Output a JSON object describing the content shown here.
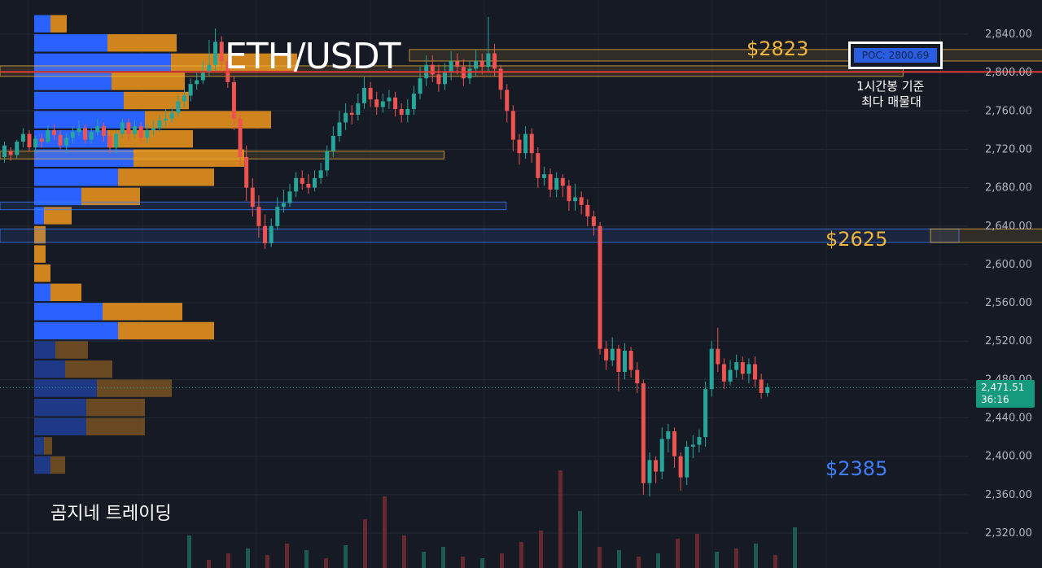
{
  "title": "ETH/USDT",
  "watermark": "곰지네 트레이딩",
  "colors": {
    "background": "#161a25",
    "up": "#26a69a",
    "down": "#ef5350",
    "vp_blue": "#2962ff",
    "vp_orange": "#d98a1e",
    "level_gold": "#f0b53a",
    "level_blue": "#3d7fff",
    "poc_line": "#e53935"
  },
  "annotations": {
    "level_high": "$2823",
    "level_mid": "$2625",
    "level_low": "$2385",
    "poc_label": "POC: 2800.69",
    "note_line1": "1시간봉 기준",
    "note_line2": "최다 매물대"
  },
  "price_tag": {
    "price": "2,471.51",
    "countdown": "36:16"
  },
  "chart_data": {
    "type": "candlestick",
    "symbol": "ETH/USDT",
    "y_axis": {
      "ticks": [
        "2,840.00",
        "2,800.00",
        "2,760.00",
        "2,720.00",
        "2,680.00",
        "2,640.00",
        "2,600.00",
        "2,560.00",
        "2,520.00",
        "2,480.00",
        "2,440.00",
        "2,400.00",
        "2,360.00",
        "2,320.00"
      ],
      "range": [
        2290,
        2875
      ],
      "position": "right"
    },
    "last_price": 2471.51,
    "poc_price": 2800.69,
    "horizontal_levels": [
      {
        "price": 2823,
        "label": "$2823",
        "color": "#f0b53a"
      },
      {
        "price": 2625,
        "label": "$2625",
        "color": "#f0b53a"
      },
      {
        "price": 2385,
        "label": "$2385",
        "color": "#3d7fff"
      }
    ],
    "zones": [
      {
        "low": 2812,
        "high": 2824,
        "color": "#f0b53a",
        "start": 66,
        "end": 196
      },
      {
        "low": 2796,
        "high": 2807,
        "color": "#f0b53a",
        "start": 0,
        "end": 141
      },
      {
        "low": 2710,
        "high": 2718,
        "color": "#f0b53a",
        "start": 0,
        "end": 67
      },
      {
        "low": 2657,
        "high": 2665,
        "color": "#3d7fff",
        "start": 0,
        "end": 77
      },
      {
        "low": 2623,
        "high": 2637,
        "color": "#3d7fff",
        "start": 0,
        "end": 150
      },
      {
        "low": 2623,
        "high": 2637,
        "color": "#f0b53a",
        "start": 150,
        "end": 196
      },
      {
        "low": 2376,
        "high": 2393,
        "color": "#3d7fff",
        "start": 170,
        "end": 196
      }
    ],
    "candles": [
      [
        2712,
        2724,
        2718,
        2728,
        2706
      ],
      [
        2718,
        2714,
        2712,
        2722,
        2708
      ],
      [
        2714,
        2728,
        2720,
        2730,
        2710
      ],
      [
        2728,
        2736,
        2724,
        2742,
        2722
      ],
      [
        2736,
        2722,
        2726,
        2740,
        2718
      ],
      [
        2722,
        2731,
        2722,
        2734,
        2716
      ],
      [
        2731,
        2728,
        2726,
        2736,
        2722
      ],
      [
        2728,
        2740,
        2734,
        2745,
        2726
      ],
      [
        2740,
        2735,
        2732,
        2746,
        2730
      ],
      [
        2735,
        2724,
        2728,
        2740,
        2720
      ],
      [
        2724,
        2732,
        2720,
        2736,
        2716
      ],
      [
        2732,
        2738,
        2734,
        2744,
        2726
      ],
      [
        2738,
        2742,
        2740,
        2750,
        2734
      ],
      [
        2742,
        2730,
        2736,
        2746,
        2726
      ],
      [
        2730,
        2738,
        2732,
        2742,
        2726
      ],
      [
        2738,
        2744,
        2740,
        2752,
        2734
      ],
      [
        2744,
        2734,
        2738,
        2748,
        2728
      ],
      [
        2734,
        2722,
        2726,
        2738,
        2716
      ],
      [
        2722,
        2736,
        2730,
        2740,
        2716
      ],
      [
        2736,
        2748,
        2742,
        2752,
        2732
      ],
      [
        2748,
        2736,
        2740,
        2752,
        2730
      ],
      [
        2736,
        2744,
        2740,
        2750,
        2732
      ],
      [
        2744,
        2732,
        2736,
        2748,
        2726
      ],
      [
        2732,
        2740,
        2736,
        2746,
        2726
      ],
      [
        2740,
        2742,
        2744,
        2750,
        2734
      ],
      [
        2742,
        2750,
        2746,
        2756,
        2738
      ],
      [
        2750,
        2752,
        2758,
        2762,
        2744
      ],
      [
        2752,
        2758,
        2754,
        2764,
        2748
      ],
      [
        2758,
        2770,
        2764,
        2776,
        2754
      ],
      [
        2770,
        2776,
        2772,
        2782,
        2764
      ],
      [
        2776,
        2788,
        2782,
        2794,
        2770
      ],
      [
        2788,
        2792,
        2790,
        2800,
        2782
      ],
      [
        2792,
        2800,
        2796,
        2812,
        2788
      ],
      [
        2800,
        2808,
        2804,
        2834,
        2796
      ],
      [
        2808,
        2832,
        2818,
        2846,
        2802
      ],
      [
        2832,
        2812,
        2820,
        2838,
        2804
      ],
      [
        2812,
        2790,
        2798,
        2818,
        2784
      ],
      [
        2790,
        2752,
        2766,
        2796,
        2740
      ],
      [
        2752,
        2712,
        2724,
        2758,
        2704
      ],
      [
        2712,
        2680,
        2690,
        2724,
        2666
      ],
      [
        2680,
        2660,
        2668,
        2690,
        2650
      ],
      [
        2660,
        2640,
        2648,
        2672,
        2628
      ],
      [
        2640,
        2622,
        2630,
        2652,
        2616
      ],
      [
        2622,
        2640,
        2636,
        2648,
        2618
      ],
      [
        2640,
        2660,
        2654,
        2670,
        2636
      ],
      [
        2660,
        2664,
        2668,
        2678,
        2654
      ],
      [
        2664,
        2676,
        2672,
        2684,
        2660
      ],
      [
        2676,
        2690,
        2684,
        2696,
        2670
      ],
      [
        2690,
        2684,
        2688,
        2698,
        2678
      ],
      [
        2684,
        2680,
        2682,
        2694,
        2674
      ],
      [
        2680,
        2690,
        2686,
        2698,
        2676
      ],
      [
        2690,
        2698,
        2694,
        2706,
        2684
      ],
      [
        2698,
        2718,
        2710,
        2724,
        2692
      ],
      [
        2718,
        2734,
        2728,
        2744,
        2712
      ],
      [
        2734,
        2748,
        2742,
        2760,
        2728
      ],
      [
        2748,
        2758,
        2752,
        2768,
        2740
      ],
      [
        2758,
        2756,
        2754,
        2766,
        2746
      ],
      [
        2756,
        2768,
        2762,
        2778,
        2750
      ],
      [
        2768,
        2784,
        2778,
        2796,
        2762
      ],
      [
        2784,
        2772,
        2776,
        2790,
        2764
      ],
      [
        2772,
        2764,
        2768,
        2780,
        2756
      ],
      [
        2764,
        2770,
        2766,
        2778,
        2758
      ],
      [
        2770,
        2774,
        2772,
        2782,
        2762
      ],
      [
        2774,
        2762,
        2768,
        2780,
        2754
      ],
      [
        2762,
        2756,
        2758,
        2768,
        2748
      ],
      [
        2756,
        2762,
        2760,
        2772,
        2748
      ],
      [
        2762,
        2778,
        2772,
        2786,
        2756
      ],
      [
        2778,
        2794,
        2788,
        2806,
        2772
      ],
      [
        2794,
        2808,
        2800,
        2818,
        2786
      ],
      [
        2808,
        2798,
        2802,
        2818,
        2790
      ],
      [
        2798,
        2788,
        2792,
        2808,
        2780
      ],
      [
        2788,
        2800,
        2796,
        2810,
        2782
      ],
      [
        2800,
        2812,
        2806,
        2822,
        2792
      ],
      [
        2812,
        2806,
        2808,
        2820,
        2798
      ],
      [
        2806,
        2794,
        2800,
        2814,
        2786
      ],
      [
        2794,
        2804,
        2800,
        2812,
        2788
      ],
      [
        2804,
        2812,
        2808,
        2824,
        2796
      ],
      [
        2812,
        2806,
        2808,
        2820,
        2798
      ],
      [
        2806,
        2820,
        2814,
        2858,
        2800
      ],
      [
        2820,
        2804,
        2812,
        2830,
        2796
      ],
      [
        2804,
        2782,
        2790,
        2808,
        2772
      ],
      [
        2782,
        2760,
        2768,
        2788,
        2748
      ],
      [
        2760,
        2730,
        2740,
        2766,
        2718
      ],
      [
        2730,
        2716,
        2720,
        2736,
        2704
      ],
      [
        2716,
        2736,
        2730,
        2744,
        2710
      ],
      [
        2736,
        2716,
        2720,
        2742,
        2706
      ],
      [
        2716,
        2690,
        2700,
        2722,
        2680
      ],
      [
        2690,
        2694,
        2692,
        2702,
        2682
      ],
      [
        2694,
        2678,
        2684,
        2700,
        2670
      ],
      [
        2678,
        2690,
        2686,
        2696,
        2670
      ],
      [
        2690,
        2682,
        2684,
        2694,
        2670
      ],
      [
        2682,
        2666,
        2672,
        2688,
        2656
      ],
      [
        2666,
        2670,
        2668,
        2684,
        2656
      ],
      [
        2670,
        2662,
        2664,
        2676,
        2652
      ],
      [
        2662,
        2650,
        2656,
        2668,
        2640
      ],
      [
        2650,
        2640,
        2646,
        2656,
        2630
      ],
      [
        2640,
        2512,
        2540,
        2644,
        2506
      ],
      [
        2512,
        2500,
        2504,
        2520,
        2490
      ],
      [
        2500,
        2512,
        2506,
        2524,
        2494
      ],
      [
        2512,
        2488,
        2496,
        2516,
        2468
      ],
      [
        2488,
        2510,
        2500,
        2518,
        2480
      ],
      [
        2510,
        2490,
        2498,
        2514,
        2482
      ],
      [
        2490,
        2476,
        2482,
        2498,
        2466
      ],
      [
        2476,
        2372,
        2400,
        2480,
        2360
      ],
      [
        2372,
        2396,
        2384,
        2404,
        2358
      ],
      [
        2396,
        2384,
        2388,
        2400,
        2372
      ],
      [
        2384,
        2418,
        2404,
        2430,
        2376
      ],
      [
        2418,
        2426,
        2420,
        2434,
        2404
      ],
      [
        2426,
        2400,
        2410,
        2430,
        2388
      ],
      [
        2400,
        2378,
        2388,
        2404,
        2364
      ],
      [
        2378,
        2410,
        2398,
        2416,
        2370
      ],
      [
        2410,
        2412,
        2414,
        2422,
        2398
      ],
      [
        2412,
        2420,
        2418,
        2428,
        2404
      ],
      [
        2420,
        2470,
        2448,
        2478,
        2410
      ],
      [
        2470,
        2512,
        2494,
        2520,
        2462
      ],
      [
        2512,
        2496,
        2504,
        2534,
        2488
      ],
      [
        2496,
        2478,
        2486,
        2502,
        2470
      ],
      [
        2478,
        2490,
        2484,
        2500,
        2474
      ],
      [
        2490,
        2498,
        2494,
        2506,
        2482
      ],
      [
        2498,
        2486,
        2490,
        2504,
        2480
      ],
      [
        2486,
        2496,
        2490,
        2502,
        2476
      ],
      [
        2496,
        2480,
        2486,
        2504,
        2472
      ],
      [
        2480,
        2466,
        2472,
        2486,
        2460
      ],
      [
        2466,
        2472,
        2470,
        2476,
        2462
      ]
    ],
    "volume_profile": [
      {
        "price": 2850,
        "buy": 20,
        "sell": 20
      },
      {
        "price": 2830,
        "buy": 90,
        "sell": 85
      },
      {
        "price": 2810,
        "buy": 168,
        "sell": 155
      },
      {
        "price": 2790,
        "buy": 95,
        "sell": 90
      },
      {
        "price": 2770,
        "buy": 110,
        "sell": 80
      },
      {
        "price": 2750,
        "buy": 136,
        "sell": 155
      },
      {
        "price": 2730,
        "buy": 90,
        "sell": 105
      },
      {
        "price": 2710,
        "buy": 122,
        "sell": 136
      },
      {
        "price": 2690,
        "buy": 103,
        "sell": 118
      },
      {
        "price": 2670,
        "buy": 58,
        "sell": 72
      },
      {
        "price": 2650,
        "buy": 12,
        "sell": 34
      },
      {
        "price": 2630,
        "buy": 0,
        "sell": 14
      },
      {
        "price": 2610,
        "buy": 0,
        "sell": 14
      },
      {
        "price": 2590,
        "buy": 0,
        "sell": 20
      },
      {
        "price": 2570,
        "buy": 20,
        "sell": 38
      },
      {
        "price": 2550,
        "buy": 84,
        "sell": 98
      },
      {
        "price": 2530,
        "buy": 103,
        "sell": 118
      },
      {
        "price": 2510,
        "buy": 26,
        "sell": 40
      },
      {
        "price": 2490,
        "buy": 38,
        "sell": 58
      },
      {
        "price": 2470,
        "buy": 77,
        "sell": 92
      },
      {
        "price": 2450,
        "buy": 64,
        "sell": 72
      },
      {
        "price": 2430,
        "buy": 64,
        "sell": 72
      },
      {
        "price": 2410,
        "buy": 12,
        "sell": 10
      },
      {
        "price": 2390,
        "buy": 20,
        "sell": 18
      }
    ],
    "volume_bars": [
      [
        40,
        1
      ],
      [
        10,
        0
      ],
      [
        18,
        0
      ],
      [
        24,
        1
      ],
      [
        16,
        0
      ],
      [
        30,
        0
      ],
      [
        22,
        1
      ],
      [
        12,
        0
      ],
      [
        28,
        1
      ],
      [
        60,
        0
      ],
      [
        88,
        0
      ],
      [
        40,
        0
      ],
      [
        20,
        1
      ],
      [
        26,
        1
      ],
      [
        14,
        0
      ],
      [
        12,
        1
      ],
      [
        18,
        0
      ],
      [
        32,
        0
      ],
      [
        46,
        0
      ],
      [
        120,
        0
      ],
      [
        70,
        1
      ],
      [
        26,
        0
      ],
      [
        22,
        1
      ],
      [
        14,
        0
      ],
      [
        18,
        1
      ],
      [
        36,
        0
      ],
      [
        42,
        0
      ],
      [
        20,
        1
      ],
      [
        24,
        0
      ],
      [
        30,
        1
      ],
      [
        16,
        0
      ],
      [
        50,
        1
      ]
    ]
  }
}
